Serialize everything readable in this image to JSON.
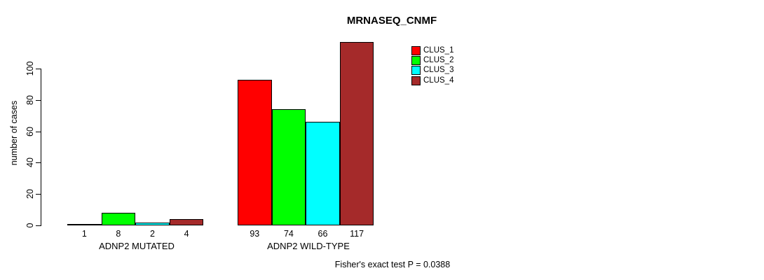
{
  "title": "MRNASEQ_CNMF",
  "y_axis": {
    "label": "number of cases",
    "ticks": [
      0,
      20,
      40,
      60,
      80,
      100
    ]
  },
  "footer": "Fisher's exact test P = 0.0388",
  "legend": {
    "items": [
      {
        "label": "CLUS_1",
        "color": "#ff0000"
      },
      {
        "label": "CLUS_2",
        "color": "#00ff00"
      },
      {
        "label": "CLUS_3",
        "color": "#00ffff"
      },
      {
        "label": "CLUS_4",
        "color": "#a52a2a"
      }
    ]
  },
  "chart_data": {
    "type": "bar",
    "title": "MRNASEQ_CNMF",
    "xlabel": "",
    "ylabel": "number of cases",
    "categories": [
      "ADNP2 MUTATED",
      "ADNP2 WILD-TYPE"
    ],
    "series": [
      {
        "name": "CLUS_1",
        "color": "#ff0000",
        "values": [
          1,
          93
        ]
      },
      {
        "name": "CLUS_2",
        "color": "#00ff00",
        "values": [
          8,
          74
        ]
      },
      {
        "name": "CLUS_3",
        "color": "#00ffff",
        "values": [
          2,
          66
        ]
      },
      {
        "name": "CLUS_4",
        "color": "#a52a2a",
        "values": [
          4,
          117
        ]
      }
    ],
    "yticks": [
      0,
      20,
      40,
      60,
      80,
      100
    ],
    "ylim": [
      0,
      117
    ],
    "bar_value_labels_shown": true,
    "legend_position": "top-right",
    "grid": false,
    "annotation": "Fisher's exact test P = 0.0388"
  }
}
